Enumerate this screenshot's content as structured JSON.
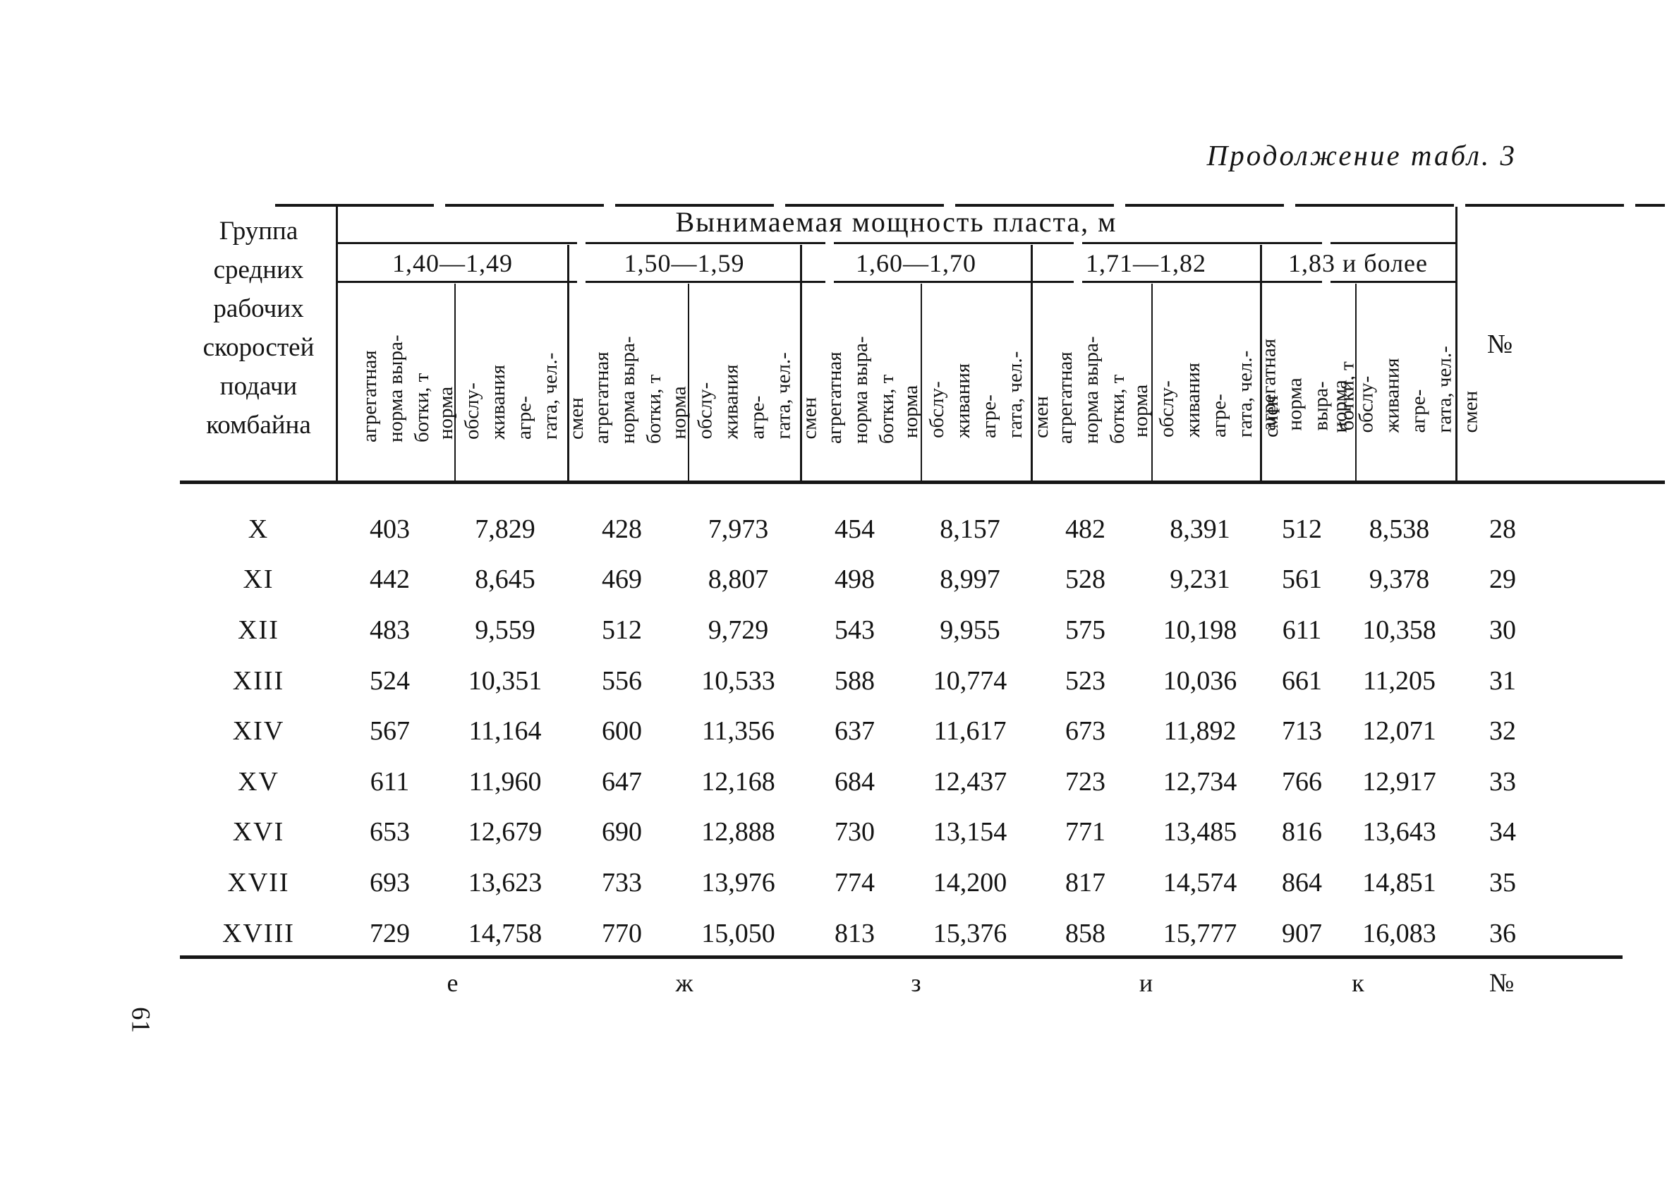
{
  "page": {
    "title": "Продолжение табл. 3",
    "page_number": "61"
  },
  "table": {
    "stub_header": "Группа\nсредних\nрабочих\nскоростей\nподачи\nкомбайна",
    "span_header": "Вынимаемая мощность пласта, м",
    "number_header": "№",
    "footer_number_label": "№",
    "subcol_a": "агрегатная\nнорма выра-\nботки, т",
    "subcol_b": "норма обслу-\nживания агре-\nгата, чел.-смен",
    "groups": [
      {
        "range": "1,40—1,49",
        "letter": "е"
      },
      {
        "range": "1,50—1,59",
        "letter": "ж"
      },
      {
        "range": "1,60—1,70",
        "letter": "з"
      },
      {
        "range": "1,71—1,82",
        "letter": "и"
      },
      {
        "range": "1,83 и более",
        "letter": "к"
      }
    ],
    "rows": [
      {
        "group": "X",
        "values": [
          "403",
          "7,829",
          "428",
          "7,973",
          "454",
          "8,157",
          "482",
          "8,391",
          "512",
          "8,538"
        ],
        "num": "28"
      },
      {
        "group": "XI",
        "values": [
          "442",
          "8,645",
          "469",
          "8,807",
          "498",
          "8,997",
          "528",
          "9,231",
          "561",
          "9,378"
        ],
        "num": "29"
      },
      {
        "group": "XII",
        "values": [
          "483",
          "9,559",
          "512",
          "9,729",
          "543",
          "9,955",
          "575",
          "10,198",
          "611",
          "10,358"
        ],
        "num": "30"
      },
      {
        "group": "XIII",
        "values": [
          "524",
          "10,351",
          "556",
          "10,533",
          "588",
          "10,774",
          "523",
          "10,036",
          "661",
          "11,205"
        ],
        "num": "31"
      },
      {
        "group": "XIV",
        "values": [
          "567",
          "11,164",
          "600",
          "11,356",
          "637",
          "11,617",
          "673",
          "11,892",
          "713",
          "12,071"
        ],
        "num": "32"
      },
      {
        "group": "XV",
        "values": [
          "611",
          "11,960",
          "647",
          "12,168",
          "684",
          "12,437",
          "723",
          "12,734",
          "766",
          "12,917"
        ],
        "num": "33"
      },
      {
        "group": "XVI",
        "values": [
          "653",
          "12,679",
          "690",
          "12,888",
          "730",
          "13,154",
          "771",
          "13,485",
          "816",
          "13,643"
        ],
        "num": "34"
      },
      {
        "group": "XVII",
        "values": [
          "693",
          "13,623",
          "733",
          "13,976",
          "774",
          "14,200",
          "817",
          "14,574",
          "864",
          "14,851"
        ],
        "num": "35"
      },
      {
        "group": "XVIII",
        "values": [
          "729",
          "14,758",
          "770",
          "15,050",
          "813",
          "15,376",
          "858",
          "15,777",
          "907",
          "16,083"
        ],
        "num": "36"
      }
    ]
  }
}
